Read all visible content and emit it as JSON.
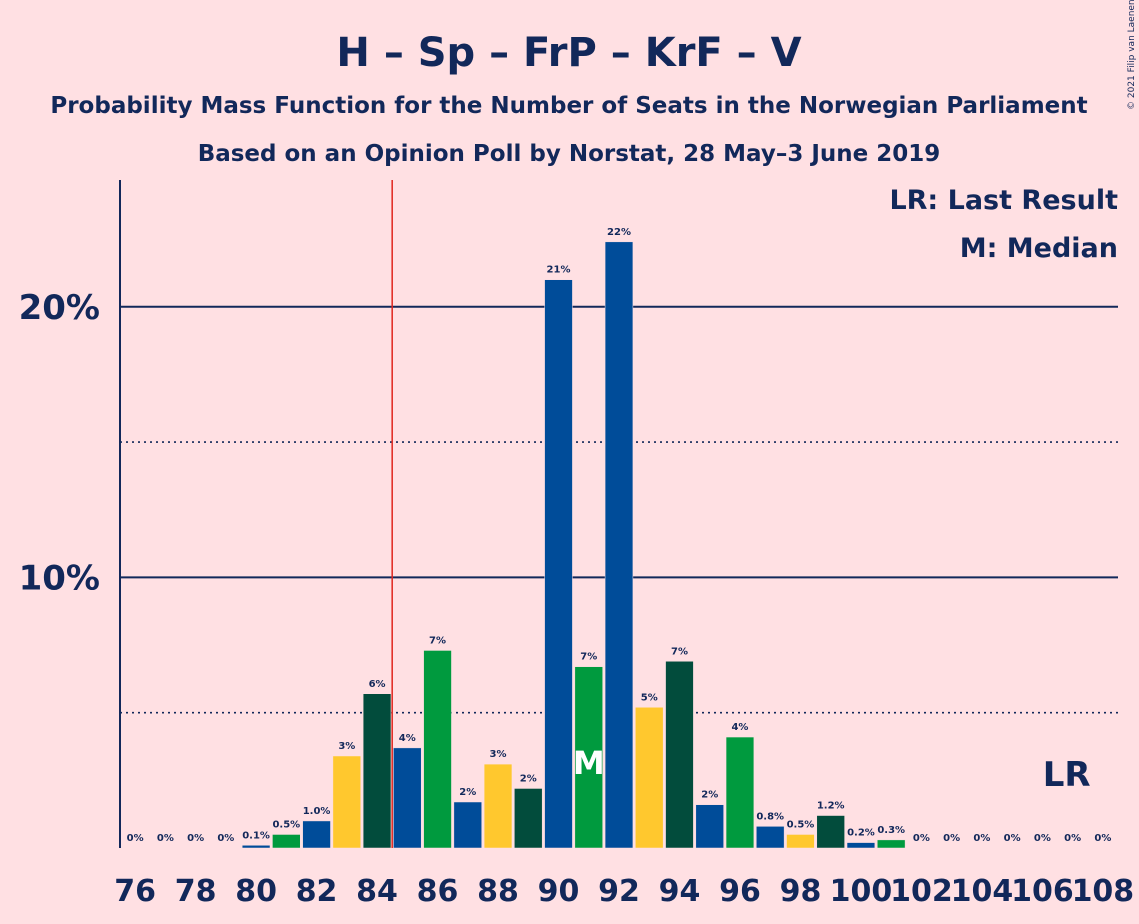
{
  "title": "H – Sp – FrP – KrF – V",
  "subtitle1": "Probability Mass Function for the Number of Seats in the Norwegian Parliament",
  "subtitle2": "Based on an Opinion Poll by Norstat, 28 May–3 June 2019",
  "copyright": "© 2021 Filip van Laenen",
  "legend": {
    "lr": "LR: Last Result",
    "m": "M: Median"
  },
  "lr_marker": "LR",
  "median_marker": "M",
  "colors": {
    "background": "#ffe0e3",
    "text": "#12285a",
    "last_result_line": "#e0261e",
    "bar_palette": [
      "#004c99",
      "#009a3e",
      "#ffc82e",
      "#024c3c"
    ]
  },
  "chart_data": {
    "type": "bar",
    "x": [
      76,
      77,
      78,
      79,
      80,
      81,
      82,
      83,
      84,
      85,
      86,
      87,
      88,
      89,
      90,
      91,
      92,
      93,
      94,
      95,
      96,
      97,
      98,
      99,
      100,
      101,
      102,
      103,
      104,
      105,
      106,
      107,
      108
    ],
    "values": [
      0,
      0,
      0,
      0,
      0.1,
      0.5,
      1.0,
      3.4,
      5.7,
      3.7,
      7.3,
      1.7,
      3.1,
      2.2,
      21.0,
      6.7,
      22.4,
      5.2,
      6.9,
      1.6,
      4.1,
      0.8,
      0.5,
      1.2,
      0.2,
      0.3,
      0,
      0,
      0,
      0,
      0,
      0,
      0
    ],
    "value_labels": [
      "0%",
      "0%",
      "0%",
      "0%",
      "0.1%",
      "0.5%",
      "1.0%",
      "3%",
      "6%",
      "4%",
      "7%",
      "2%",
      "3%",
      "2%",
      "21%",
      "7%",
      "22%",
      "5%",
      "7%",
      "2%",
      "4%",
      "0.8%",
      "0.5%",
      "1.2%",
      "0.2%",
      "0.3%",
      "0%",
      "0%",
      "0%",
      "0%",
      "0%",
      "0%",
      "0%"
    ],
    "bar_colors": [
      "#004c99",
      "#009a3e",
      "#ffc82e",
      "#024c3c",
      "#004c99",
      "#009a3e",
      "#004c99",
      "#ffc82e",
      "#024c3c",
      "#004c99",
      "#009a3e",
      "#004c99",
      "#ffc82e",
      "#024c3c",
      "#004c99",
      "#009a3e",
      "#004c99",
      "#ffc82e",
      "#024c3c",
      "#004c99",
      "#009a3e",
      "#004c99",
      "#ffc82e",
      "#024c3c",
      "#004c99",
      "#009a3e",
      "#004c99",
      "#ffc82e",
      "#024c3c",
      "#004c99",
      "#009a3e",
      "#004c99",
      "#ffc82e"
    ],
    "x_tick_labels": [
      "76",
      "78",
      "80",
      "82",
      "84",
      "86",
      "88",
      "90",
      "92",
      "94",
      "96",
      "98",
      "100",
      "102",
      "104",
      "106",
      "108"
    ],
    "y_tick_labels": [
      "10%",
      "20%"
    ],
    "y_ticks": [
      10,
      20
    ],
    "y_minor_ticks": [
      5,
      15
    ],
    "ylim": [
      0,
      24.5
    ],
    "last_result": 85,
    "median": 91,
    "grid": true,
    "legend_position": "top-right"
  }
}
